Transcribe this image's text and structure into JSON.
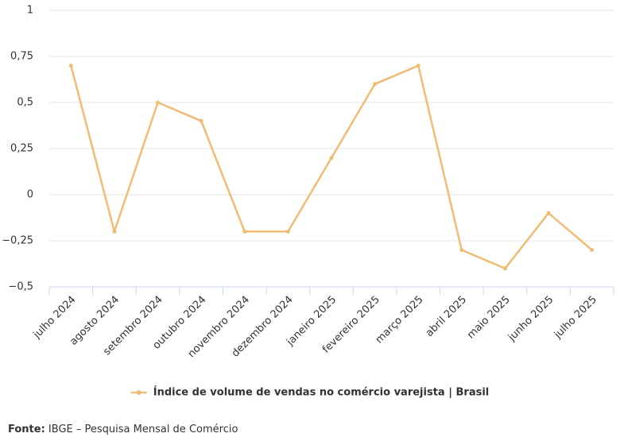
{
  "chart_data": {
    "type": "line",
    "categories": [
      "julho 2024",
      "agosto 2024",
      "setembro 2024",
      "outubro 2024",
      "novembro 2024",
      "dezembro 2024",
      "janeiro 2025",
      "fevereiro 2025",
      "março 2025",
      "abril 2025",
      "maio 2025",
      "junho 2025",
      "julho 2025"
    ],
    "series": [
      {
        "name": "Índice de volume de vendas no comércio varejista | Brasil",
        "color": "#f0bc74",
        "values": [
          0.7,
          -0.2,
          0.5,
          0.4,
          -0.2,
          -0.2,
          0.2,
          0.6,
          0.7,
          -0.3,
          -0.4,
          -0.1,
          -0.3
        ]
      }
    ],
    "ylim": [
      -0.5,
      1
    ],
    "yticks": [
      {
        "value": -0.5,
        "label": "−0,5"
      },
      {
        "value": -0.25,
        "label": "−0,25"
      },
      0,
      {
        "value": 0.25,
        "label": "0,25"
      },
      {
        "value": 0.5,
        "label": "0,5"
      },
      {
        "value": 0.75,
        "label": "0,75"
      },
      1
    ],
    "grid": true,
    "legend": "bottom"
  },
  "source": {
    "label": "Fonte:",
    "text": "IBGE – Pesquisa Mensal de Comércio"
  }
}
